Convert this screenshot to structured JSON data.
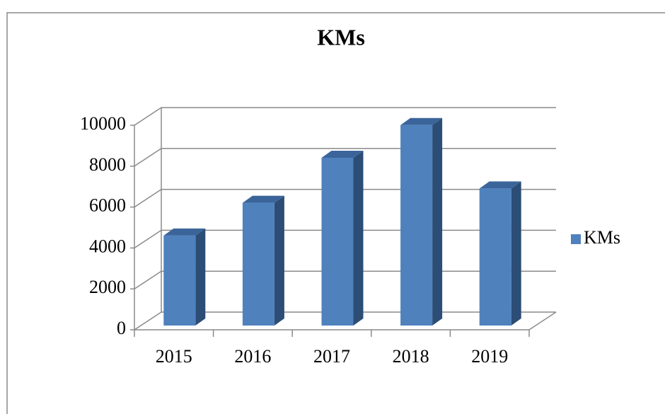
{
  "chart_data": {
    "type": "bar3d",
    "title": "KMs",
    "categories": [
      "2015",
      "2016",
      "2017",
      "2018",
      "2019"
    ],
    "series": [
      {
        "name": "KMs",
        "color": "#4f81bd",
        "values": [
          4400,
          6000,
          8200,
          9800,
          6700
        ]
      }
    ],
    "ylim": [
      0,
      10000
    ],
    "yticks": [
      0,
      2000,
      4000,
      6000,
      8000,
      10000
    ],
    "grid": true,
    "legend": "right"
  }
}
